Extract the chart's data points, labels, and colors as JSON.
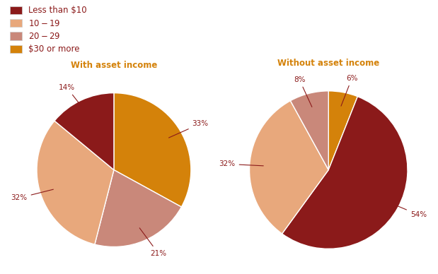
{
  "pie1_title": "With asset income",
  "pie2_title": "Without asset income",
  "labels": [
    "Less than $10",
    "$10-$19",
    "$20-$29",
    "$30 or more"
  ],
  "colors": [
    "#8B1A1A",
    "#E8A87C",
    "#C9887A",
    "#D4820A"
  ],
  "pie1_vals": [
    33,
    21,
    32,
    14
  ],
  "pie1_colors": [
    "#D4820A",
    "#C9887A",
    "#E8A87C",
    "#8B1A1A"
  ],
  "pie1_pcts": [
    "33%",
    "21%",
    "32%",
    "14%"
  ],
  "pie2_vals": [
    6,
    54,
    32,
    8
  ],
  "pie2_colors": [
    "#D4820A",
    "#8B1A1A",
    "#E8A87C",
    "#C9887A"
  ],
  "pie2_pcts": [
    "6%",
    "54%",
    "32%",
    "8%"
  ],
  "title_color": "#D4820A",
  "label_color": "#8B1A1A",
  "legend_colors": [
    "#8B1A1A",
    "#E8A87C",
    "#C9887A",
    "#D4820A"
  ],
  "bg_color": "#FFFFFF",
  "wedge_edge_color": "#FFFFFF"
}
